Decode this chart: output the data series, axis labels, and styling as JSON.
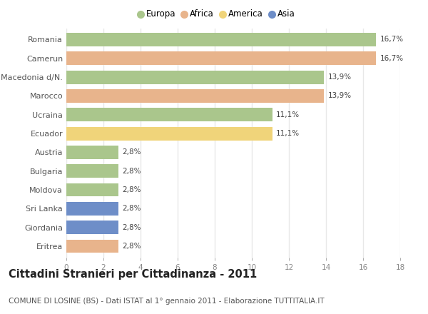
{
  "categories": [
    "Romania",
    "Camerun",
    "Macedonia d/N.",
    "Marocco",
    "Ucraina",
    "Ecuador",
    "Austria",
    "Bulgaria",
    "Moldova",
    "Sri Lanka",
    "Giordania",
    "Eritrea"
  ],
  "values": [
    16.7,
    16.7,
    13.9,
    13.9,
    11.1,
    11.1,
    2.8,
    2.8,
    2.8,
    2.8,
    2.8,
    2.8
  ],
  "labels": [
    "16,7%",
    "16,7%",
    "13,9%",
    "13,9%",
    "11,1%",
    "11,1%",
    "2,8%",
    "2,8%",
    "2,8%",
    "2,8%",
    "2,8%",
    "2,8%"
  ],
  "colors": [
    "#aac68c",
    "#e8b48c",
    "#aac68c",
    "#e8b48c",
    "#aac68c",
    "#f0d47a",
    "#aac68c",
    "#aac68c",
    "#aac68c",
    "#6e8ec8",
    "#6e8ec8",
    "#e8b48c"
  ],
  "legend": [
    {
      "label": "Europa",
      "color": "#aac68c"
    },
    {
      "label": "Africa",
      "color": "#e8b48c"
    },
    {
      "label": "America",
      "color": "#f0d47a"
    },
    {
      "label": "Asia",
      "color": "#6e8ec8"
    }
  ],
  "xlim": [
    0,
    18
  ],
  "xticks": [
    0,
    2,
    4,
    6,
    8,
    10,
    12,
    14,
    16,
    18
  ],
  "title": "Cittadini Stranieri per Cittadinanza - 2011",
  "subtitle": "COMUNE DI LOSINE (BS) - Dati ISTAT al 1° gennaio 2011 - Elaborazione TUTTITALIA.IT",
  "title_fontsize": 10.5,
  "subtitle_fontsize": 7.5,
  "background_color": "#ffffff",
  "grid_color": "#e8e8e8",
  "bar_height": 0.72
}
